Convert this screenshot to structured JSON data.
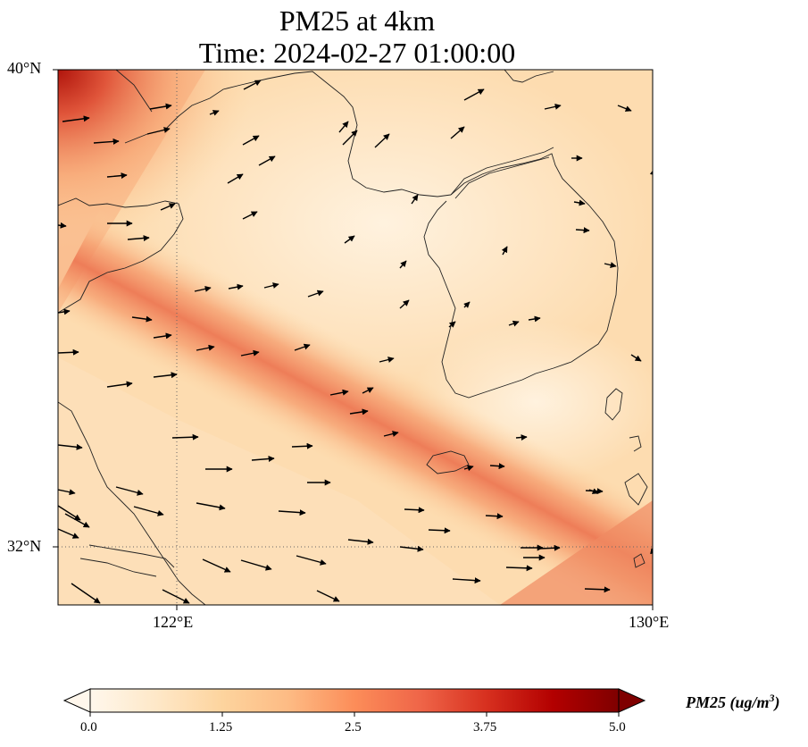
{
  "title": {
    "line1": "PM25 at 4km",
    "line2": "Time: 2024-02-27 01:00:00"
  },
  "map": {
    "lat_labels": [
      "40°N",
      "32°N"
    ],
    "lon_labels": [
      "122°E",
      "130°E"
    ],
    "extent": {
      "lon_min": 120,
      "lon_max": 130,
      "lat_min": 31,
      "lat_max": 40
    },
    "gridlines": {
      "lons": [
        122
      ],
      "lats": [
        32
      ],
      "style": "dotted"
    },
    "field_colormap": "OrRd",
    "wind_vectors": "shown"
  },
  "colorbar": {
    "ticks": [
      "0.0",
      "1.25",
      "2.5",
      "3.75",
      "5.0"
    ],
    "label": "PM25 (ug/m³)",
    "label_base": "PM25 (ug/m",
    "label_sup": "3",
    "label_end": ")",
    "min": 0.0,
    "max": 5.0,
    "extend": "both",
    "colors": [
      "#fff7ec",
      "#fee8c8",
      "#fdd49e",
      "#fdbb84",
      "#fc8d59",
      "#ef6548",
      "#d7301f",
      "#b30000",
      "#7f0000"
    ]
  }
}
